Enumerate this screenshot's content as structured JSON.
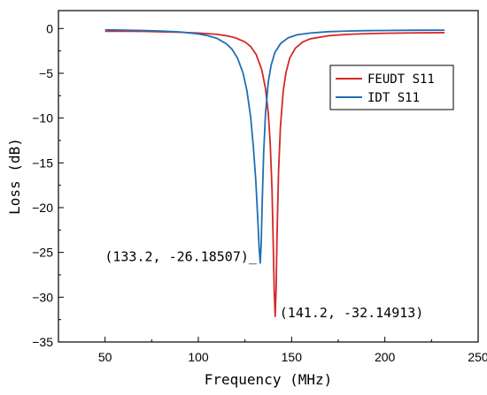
{
  "chart_data": {
    "type": "line",
    "title": "",
    "xlabel": "Frequency (MHz)",
    "ylabel": "Loss (dB)",
    "xlim": [
      25,
      250
    ],
    "ylim": [
      -35,
      2
    ],
    "xticks": [
      50,
      100,
      150,
      200,
      250
    ],
    "yticks": [
      0,
      -5,
      -10,
      -15,
      -20,
      -25,
      -30,
      -35
    ],
    "grid": false,
    "legend_position": "top-right",
    "series": [
      {
        "name": "FEUDT S11",
        "color": "#d62728",
        "x": [
          50,
          60,
          70,
          80,
          90,
          100,
          110,
          115,
          120,
          125,
          128,
          131,
          134,
          136,
          137.5,
          138.5,
          139.5,
          140.2,
          140.7,
          141.2,
          141.7,
          142.2,
          143,
          144,
          145.5,
          147,
          149,
          152,
          156,
          160,
          170,
          180,
          190,
          200,
          210,
          220,
          232
        ],
        "y": [
          -0.3,
          -0.3,
          -0.32,
          -0.36,
          -0.42,
          -0.5,
          -0.65,
          -0.8,
          -1.05,
          -1.5,
          -2.0,
          -2.9,
          -4.6,
          -6.7,
          -9.5,
          -12.7,
          -18.0,
          -24.5,
          -29.5,
          -32.14913,
          -29.0,
          -23.0,
          -16.0,
          -11.0,
          -7.0,
          -4.9,
          -3.3,
          -2.2,
          -1.5,
          -1.15,
          -0.8,
          -0.65,
          -0.58,
          -0.53,
          -0.5,
          -0.48,
          -0.46
        ]
      },
      {
        "name": "IDT S11",
        "color": "#1f6fb4",
        "x": [
          50,
          60,
          70,
          80,
          90,
          100,
          105,
          110,
          115,
          118,
          121,
          124,
          126,
          128,
          129.5,
          130.8,
          131.8,
          132.6,
          133.2,
          133.7,
          134.3,
          135,
          136,
          137.5,
          139,
          141,
          144,
          148,
          153,
          160,
          170,
          180,
          190,
          200,
          210,
          220,
          232
        ],
        "y": [
          -0.15,
          -0.18,
          -0.22,
          -0.28,
          -0.38,
          -0.6,
          -0.8,
          -1.1,
          -1.7,
          -2.3,
          -3.3,
          -5.0,
          -6.9,
          -9.8,
          -13.2,
          -17.0,
          -21.0,
          -24.5,
          -26.18507,
          -24.0,
          -19.0,
          -14.0,
          -9.5,
          -6.0,
          -4.1,
          -2.7,
          -1.7,
          -1.05,
          -0.7,
          -0.5,
          -0.35,
          -0.28,
          -0.24,
          -0.22,
          -0.2,
          -0.19,
          -0.18
        ]
      }
    ],
    "annotations": [
      {
        "text": "(133.2, -26.18507)_",
        "x": 133.2,
        "y": -26.18507,
        "anchor": "end"
      },
      {
        "text": "(141.2, -32.14913)",
        "x": 141.2,
        "y": -32.14913,
        "anchor": "start"
      }
    ]
  }
}
